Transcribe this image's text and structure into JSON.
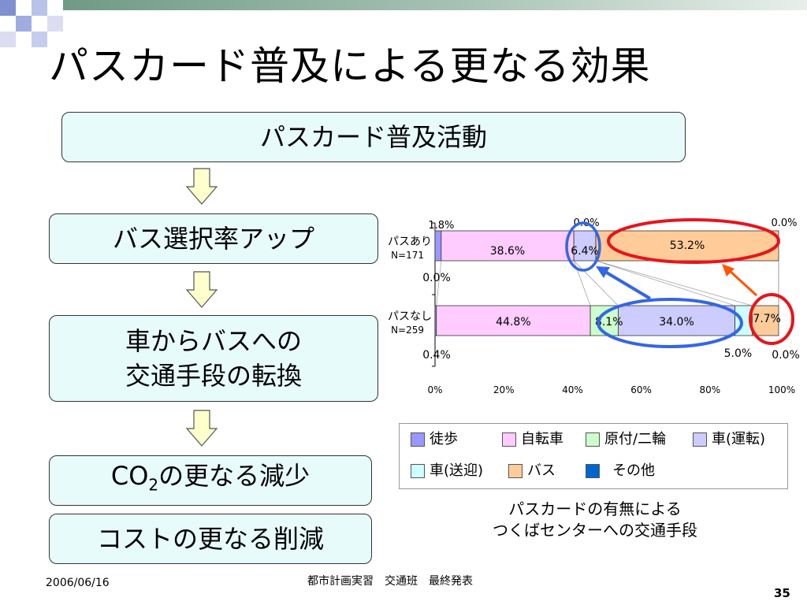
{
  "title": "パスカード普及による更なる効果",
  "flow": {
    "top_box": "パスカード普及活動",
    "step1": "バス選択率アップ",
    "step2_line1": "車からバスへの",
    "step2_line2": "交通手段の転換",
    "step3_pre": "CO",
    "step3_sub": "2",
    "step3_post": "の更なる減少",
    "step4": "コストの更なる削減"
  },
  "chart_data": {
    "type": "bar",
    "orientation": "horizontal",
    "stacked": true,
    "percent_stacked": true,
    "categories": [
      {
        "label": "パスあり",
        "n": "N=171"
      },
      {
        "label": "パスなし",
        "n": "N=259"
      }
    ],
    "series": [
      {
        "name": "徒歩",
        "color": "#9999ff",
        "values": [
          1.8,
          0.4
        ],
        "labels": [
          "1.8%",
          "0.4%"
        ]
      },
      {
        "name": "自転車",
        "color": "#ffccff",
        "values": [
          38.6,
          44.8
        ],
        "labels": [
          "38.6%",
          "44.8%"
        ]
      },
      {
        "name": "原付/二輪",
        "color": "#ccffcc",
        "values": [
          0.0,
          8.1
        ],
        "labels": [
          "0.0%",
          "8.1%"
        ]
      },
      {
        "name": "車(運転)",
        "color": "#ccccff",
        "values": [
          6.4,
          34.0
        ],
        "labels": [
          "6.4%",
          "34.0%"
        ]
      },
      {
        "name": "車(送迎)",
        "color": "#ccffff",
        "values": [
          0.0,
          5.0
        ],
        "labels": [
          "0.0%",
          "5.0%"
        ]
      },
      {
        "name": "バス",
        "color": "#ffcc99",
        "values": [
          53.2,
          7.7
        ],
        "labels": [
          "53.2%",
          "7.7%"
        ]
      },
      {
        "name": "その他",
        "color": "#0066cc",
        "values": [
          0.0,
          0.0
        ],
        "labels": [
          "0.0%",
          "0.0%"
        ]
      }
    ],
    "xticks": [
      "0%",
      "20%",
      "40%",
      "60%",
      "80%",
      "100%"
    ],
    "xlim": [
      0,
      100
    ],
    "legend": "bottom"
  },
  "legend_items": [
    {
      "name": "徒歩",
      "color": "#9999ff"
    },
    {
      "name": "自転車",
      "color": "#ffccff"
    },
    {
      "name": "原付/二輪",
      "color": "#ccffcc"
    },
    {
      "name": "車(運転)",
      "color": "#ccccff"
    },
    {
      "name": "車(送迎)",
      "color": "#ccffff"
    },
    {
      "name": "バス",
      "color": "#ffcc99"
    },
    {
      "name": "その他",
      "color": "#0066cc"
    }
  ],
  "caption_line1": "パスカードの有無による",
  "caption_line2": "つくばセンターへの交通手段",
  "footer": {
    "date": "2006/06/16",
    "center": "都市計画実習　交通班　最終発表",
    "page": "35"
  },
  "annotation_colors": {
    "red": "#e8141b",
    "blue": "#3366e6",
    "orange_arrow": "#ff5500"
  }
}
